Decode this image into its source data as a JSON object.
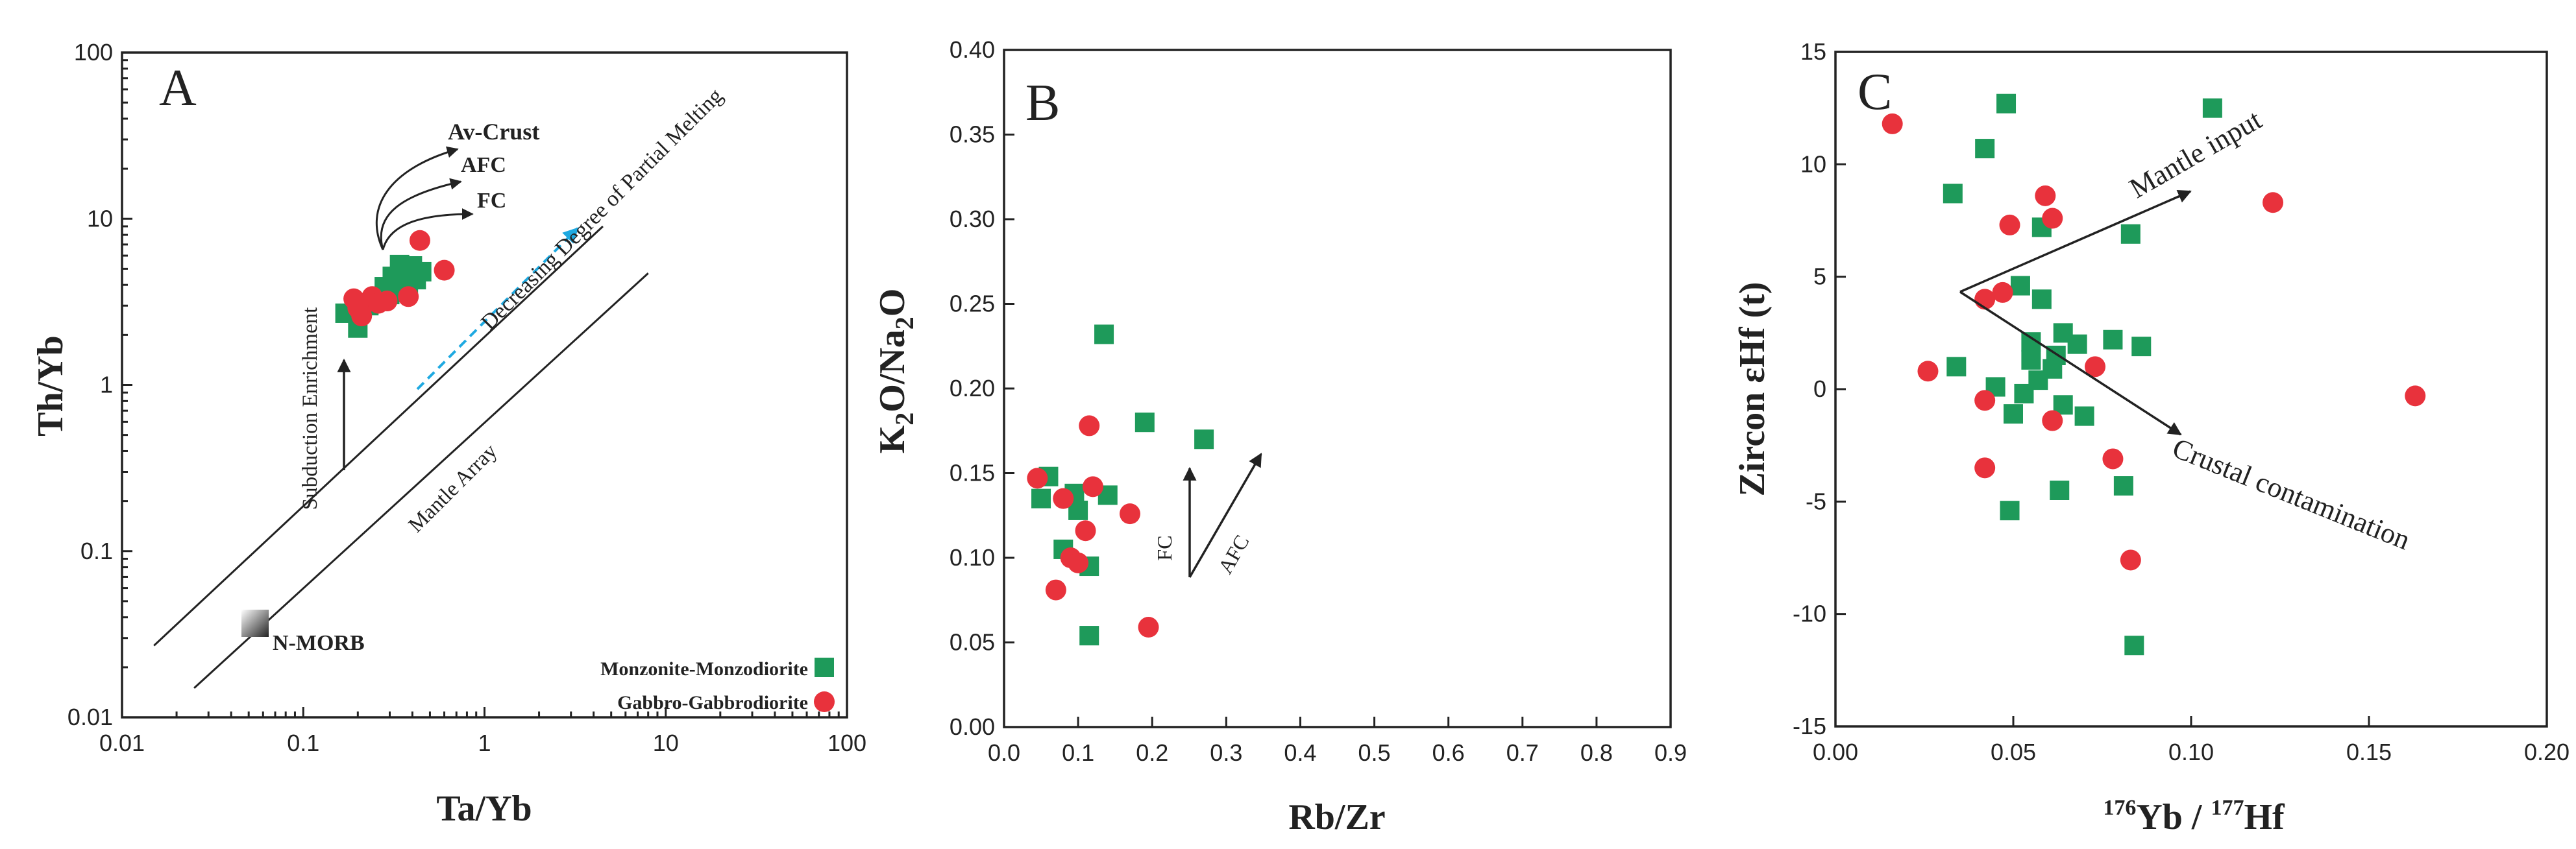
{
  "legend": {
    "green": "Monzonite-Monzodiorite",
    "red": "Gabbro-Gabbrodiorite"
  },
  "colors": {
    "green": "#1e9a5a",
    "red": "#e8323c",
    "cyan": "#1ea9e1"
  },
  "chart_data": [
    {
      "panel": "A",
      "type": "scatter",
      "xscale": "log",
      "yscale": "log",
      "xlabel": "Ta/Yb",
      "ylabel": "Th/Yb",
      "xlim": [
        0.01,
        100
      ],
      "ylim": [
        0.01,
        100
      ],
      "xticks": [
        "0.01",
        "0.1",
        "1",
        "10",
        "100"
      ],
      "yticks": [
        "0.01",
        "0.1",
        "1",
        "10",
        "100"
      ],
      "lines": [
        {
          "name": "mantle-array-upper",
          "points": [
            [
              0.015,
              0.027
            ],
            [
              4.5,
              9.0
            ]
          ]
        },
        {
          "name": "mantle-array-lower",
          "points": [
            [
              0.025,
              0.015
            ],
            [
              8.0,
              4.7
            ]
          ]
        }
      ],
      "annotations": {
        "av_crust": "Av-Crust",
        "afc": "AFC",
        "fc": "FC",
        "decreasing": "Decreasing Degree of Partial Melting",
        "subduction": "Subduction Enrichment",
        "mantle_array": "Mantle Array",
        "nmorb": "N-MORB"
      },
      "series": [
        {
          "name": "Monzonite-Monzodiorite",
          "marker": "square",
          "points": [
            [
              0.17,
              2.7
            ],
            [
              0.2,
              2.2
            ],
            [
              0.23,
              3.0
            ],
            [
              0.28,
              3.9
            ],
            [
              0.31,
              4.5
            ],
            [
              0.34,
              5.3
            ],
            [
              0.36,
              4.6
            ],
            [
              0.4,
              5.2
            ],
            [
              0.42,
              4.3
            ],
            [
              0.45,
              4.8
            ],
            [
              0.3,
              3.5
            ],
            [
              0.38,
              3.9
            ]
          ]
        },
        {
          "name": "Gabbro-Gabbrodiorite",
          "marker": "circle",
          "points": [
            [
              0.19,
              3.3
            ],
            [
              0.21,
              2.6
            ],
            [
              0.22,
              3.1
            ],
            [
              0.24,
              3.4
            ],
            [
              0.26,
              3.1
            ],
            [
              0.2,
              2.9
            ],
            [
              0.38,
              3.4
            ],
            [
              0.44,
              7.4
            ],
            [
              0.6,
              4.9
            ],
            [
              0.29,
              3.2
            ]
          ]
        }
      ]
    },
    {
      "panel": "B",
      "type": "scatter",
      "xlabel": "Rb/Zr",
      "ylabel": "K2O/Na2O",
      "xlim": [
        0,
        0.9
      ],
      "ylim": [
        0,
        0.4
      ],
      "xticks": [
        "0.0",
        "0.1",
        "0.2",
        "0.3",
        "0.4",
        "0.5",
        "0.6",
        "0.7",
        "0.8",
        "0.9"
      ],
      "yticks": [
        "0.00",
        "0.05",
        "0.10",
        "0.15",
        "0.20",
        "0.25",
        "0.30",
        "0.35",
        "0.40"
      ],
      "annotations": {
        "fc": "FC",
        "afc": "AFC"
      },
      "series": [
        {
          "name": "Monzonite-Monzodiorite",
          "marker": "square",
          "points": [
            [
              0.05,
              0.135
            ],
            [
              0.06,
              0.148
            ],
            [
              0.08,
              0.105
            ],
            [
              0.095,
              0.138
            ],
            [
              0.1,
              0.128
            ],
            [
              0.115,
              0.095
            ],
            [
              0.115,
              0.054
            ],
            [
              0.135,
              0.232
            ],
            [
              0.14,
              0.137
            ],
            [
              0.19,
              0.18
            ],
            [
              0.27,
              0.17
            ]
          ]
        },
        {
          "name": "Gabbro-Gabbrodiorite",
          "marker": "circle",
          "points": [
            [
              0.045,
              0.147
            ],
            [
              0.07,
              0.081
            ],
            [
              0.08,
              0.135
            ],
            [
              0.09,
              0.1
            ],
            [
              0.1,
              0.097
            ],
            [
              0.11,
              0.116
            ],
            [
              0.115,
              0.178
            ],
            [
              0.12,
              0.142
            ],
            [
              0.17,
              0.126
            ],
            [
              0.195,
              0.059
            ]
          ]
        }
      ]
    },
    {
      "panel": "C",
      "type": "scatter",
      "xlabel": "176Yb / 177Hf",
      "ylabel": "Zircon εHf (t)",
      "xlim": [
        0,
        0.2
      ],
      "ylim": [
        -15,
        15
      ],
      "xticks": [
        "0.00",
        "0.05",
        "0.10",
        "0.15",
        "0.20"
      ],
      "yticks": [
        "15",
        "10",
        "5",
        "0",
        "-5",
        "-10",
        "-15"
      ],
      "annotations": {
        "mantle": "Mantle input",
        "crustal": "Crustal contamination"
      },
      "series": [
        {
          "name": "Monzonite-Monzodiorite",
          "marker": "square",
          "points": [
            [
              0.033,
              8.7
            ],
            [
              0.034,
              1.0
            ],
            [
              0.042,
              10.7
            ],
            [
              0.045,
              0.1
            ],
            [
              0.048,
              12.7
            ],
            [
              0.049,
              -5.4
            ],
            [
              0.05,
              -1.1
            ],
            [
              0.052,
              4.6
            ],
            [
              0.053,
              -0.2
            ],
            [
              0.055,
              2.1
            ],
            [
              0.055,
              1.3
            ],
            [
              0.057,
              0.4
            ],
            [
              0.058,
              7.2
            ],
            [
              0.058,
              4.0
            ],
            [
              0.061,
              0.9
            ],
            [
              0.062,
              1.5
            ],
            [
              0.063,
              -4.5
            ],
            [
              0.064,
              2.5
            ],
            [
              0.064,
              -0.7
            ],
            [
              0.068,
              2.0
            ],
            [
              0.07,
              -1.2
            ],
            [
              0.078,
              2.2
            ],
            [
              0.081,
              -4.3
            ],
            [
              0.083,
              6.9
            ],
            [
              0.084,
              -11.4
            ],
            [
              0.086,
              1.9
            ],
            [
              0.106,
              12.5
            ]
          ]
        },
        {
          "name": "Gabbro-Gabbrodiorite",
          "marker": "circle",
          "points": [
            [
              0.016,
              11.8
            ],
            [
              0.026,
              0.8
            ],
            [
              0.042,
              4.0
            ],
            [
              0.042,
              -0.5
            ],
            [
              0.042,
              -3.5
            ],
            [
              0.047,
              4.3
            ],
            [
              0.049,
              7.3
            ],
            [
              0.059,
              8.6
            ],
            [
              0.061,
              7.6
            ],
            [
              0.061,
              -1.4
            ],
            [
              0.073,
              1.0
            ],
            [
              0.078,
              -3.1
            ],
            [
              0.083,
              -7.6
            ],
            [
              0.123,
              8.3
            ],
            [
              0.163,
              -0.3
            ]
          ]
        }
      ]
    }
  ]
}
